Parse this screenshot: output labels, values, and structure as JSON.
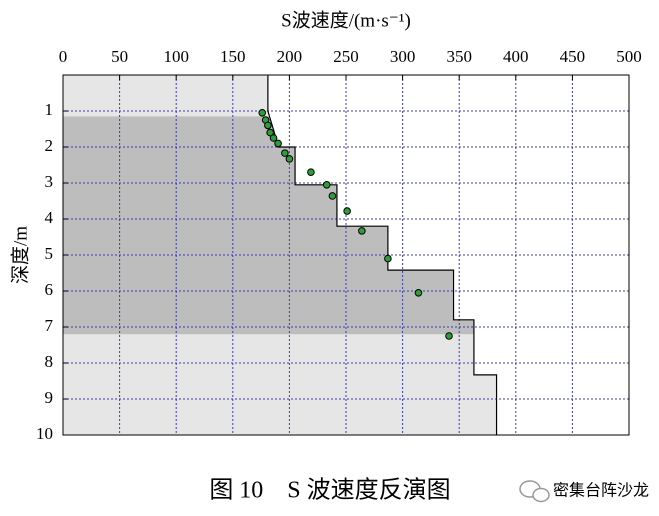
{
  "chart_data": {
    "type": "scatter",
    "title": "S波速度/(m·s⁻¹)",
    "ylabel": "深度/m",
    "xlim": [
      0,
      500
    ],
    "xticks": [
      0,
      50,
      100,
      150,
      200,
      250,
      300,
      350,
      400,
      450,
      500
    ],
    "ylim": [
      0,
      10
    ],
    "yticks": [
      1,
      2,
      3,
      4,
      5,
      6,
      7,
      8,
      9,
      10
    ],
    "y_inverted": true,
    "grid": true,
    "shaded_depth": [
      1.15,
      7.2
    ],
    "series": [
      {
        "type": "line",
        "color": "#000000",
        "x": [
          181,
          181,
          190,
          190,
          205,
          205,
          242,
          242,
          287,
          287,
          345,
          345,
          363,
          363,
          383,
          383
        ],
        "y": [
          0,
          1.0,
          1.95,
          2.0,
          2.0,
          3.05,
          3.05,
          4.2,
          4.2,
          5.42,
          5.42,
          6.8,
          6.8,
          8.33,
          8.33,
          10
        ]
      },
      {
        "type": "scatter",
        "color": "#2e9e3a",
        "x": [
          176,
          179,
          181,
          183,
          186,
          190,
          196,
          200,
          219,
          233,
          238,
          251,
          264,
          287,
          314,
          341
        ],
        "y": [
          1.05,
          1.25,
          1.4,
          1.6,
          1.75,
          1.9,
          2.17,
          2.33,
          2.7,
          3.05,
          3.36,
          3.78,
          4.33,
          5.1,
          6.05,
          7.25
        ]
      }
    ]
  },
  "caption": "图 10　S 波速度反演图",
  "watermark": "密集台阵沙龙"
}
